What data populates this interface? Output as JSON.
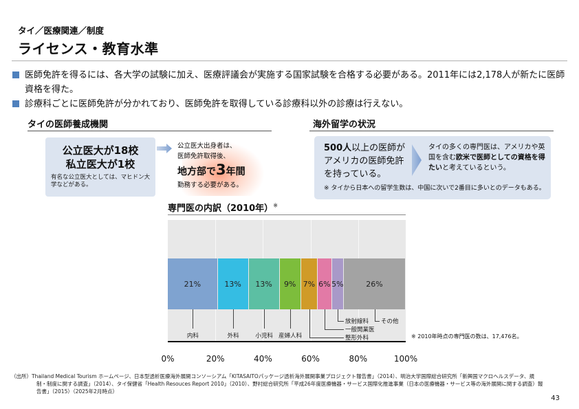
{
  "header": {
    "breadcrumb": "タイ／医療関連／制度",
    "title": "ライセンス・教育水準"
  },
  "bullets": [
    "医師免許を得るには、各大学の試験に加え、医療評議会が実施する国家試験を合格する必要がある。2011年には2,178人が新たに医師資格を得た。",
    "診療科ごとに医師免許が分かれており、医師免許を取得している診療科以外の診療は行えない。"
  ],
  "left_section": {
    "title": "タイの医師養成機関",
    "box_line1": "公立医大が18校",
    "box_line2": "私立医大が1校",
    "box_note": "有名な公立医大としては、マヒドン大学などがある。",
    "callout_line1": "公立医大出身者は、",
    "callout_line2": "医師免許取得後、",
    "callout_emph_prefix": "地方部で",
    "callout_emph_num": "3",
    "callout_emph_suffix": "年間",
    "callout_line4": "勤務する必要がある。"
  },
  "right_section": {
    "title": "海外留学の状況",
    "left_bold": "500人",
    "left_rest": "以上の医師がアメリカの医師免許を持っている。",
    "right_pre": "タイの多くの専門医は、アメリカや英国を含む",
    "right_bold": "欧米で医師としての資格を得たい",
    "right_post": "と考えているという。",
    "note": "※ タイから日本への留学生数は、中国に次いで2番目に多いとのデータもある。"
  },
  "chart_data": {
    "type": "bar",
    "orientation": "horizontal-stacked-100",
    "title": "専門医の内訳（2010年）",
    "title_mark": "※",
    "categories": [
      "内科",
      "外科",
      "小児科",
      "産婦人科",
      "整形外科",
      "一般開業医",
      "放射線科",
      "その他"
    ],
    "values": [
      21,
      13,
      13,
      9,
      7,
      6,
      5,
      26
    ],
    "labels": [
      "21%",
      "13%",
      "13%",
      "9%",
      "7%",
      "6%",
      "5%",
      "26%"
    ],
    "colors": [
      "#7fa3d0",
      "#35bde3",
      "#5cbfa3",
      "#7dbd3c",
      "#d09b28",
      "#e27aa6",
      "#a999c8",
      "#a3a3a3"
    ],
    "x_ticks": [
      "0%",
      "20%",
      "40%",
      "60%",
      "80%",
      "100%"
    ],
    "xlim": [
      0,
      100
    ],
    "grid": true,
    "note": "※ 2010年時点の専門医の数は、17,476名。"
  },
  "footer": {
    "source_line1": "（出所）Thailand Medical Tourism ホームページ、日本型透析医療海外展開コンソーシアム「KITASAITOパッケージ透析海外展開事業プロジェクト報告書」（2014）、明治大学国際総合研究所「新興国マクロヘルスデータ、規",
    "source_line2": "制・制度に関する調査」（2014）、タイ保健省「Health Resouces Report 2010」（2010）、野村総合研究所「平成26年度医療機器・サービス国際化推進事業（日本の医療機器・サービス等の海外展開に関する調査）報",
    "source_line3": "告書」（2015）（2025年2月時点）",
    "page_number": "43"
  }
}
